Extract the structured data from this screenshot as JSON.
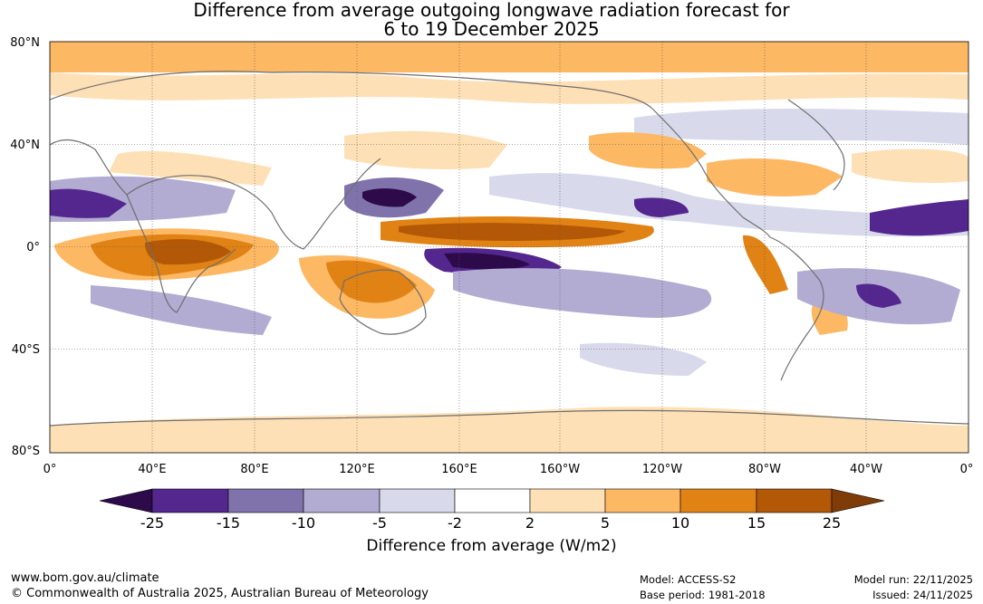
{
  "title": {
    "line1": "Difference from average outgoing longwave radiation forecast for",
    "line2": "6 to 19 December 2025"
  },
  "axes": {
    "lat_labels": [
      "80°N",
      "40°N",
      "0°",
      "40°S",
      "80°S"
    ],
    "lon_labels": [
      "0°",
      "40°E",
      "80°E",
      "120°E",
      "160°E",
      "160°W",
      "120°W",
      "80°W",
      "40°W",
      "0°"
    ]
  },
  "colorbar": {
    "title": "Difference from average (W/m2)",
    "ticks": [
      "-25",
      "-15",
      "-10",
      "-5",
      "-2",
      "2",
      "5",
      "10",
      "15",
      "25"
    ],
    "colors": [
      "#2d0a4a",
      "#54278f",
      "#8073ac",
      "#b2abd2",
      "#d8daeb",
      "#ffffff",
      "#fee0b6",
      "#fdb863",
      "#e08214",
      "#b35806",
      "#7f3b08"
    ]
  },
  "footer": {
    "website": "www.bom.gov.au/climate",
    "copyright": "© Commonwealth of Australia 2025, Australian Bureau of Meteorology",
    "model": "Model: ACCESS-S2",
    "base_period": "Base period: 1981-2018",
    "model_run": "Model run: 22/11/2025",
    "issued": "Issued: 24/11/2025"
  }
}
